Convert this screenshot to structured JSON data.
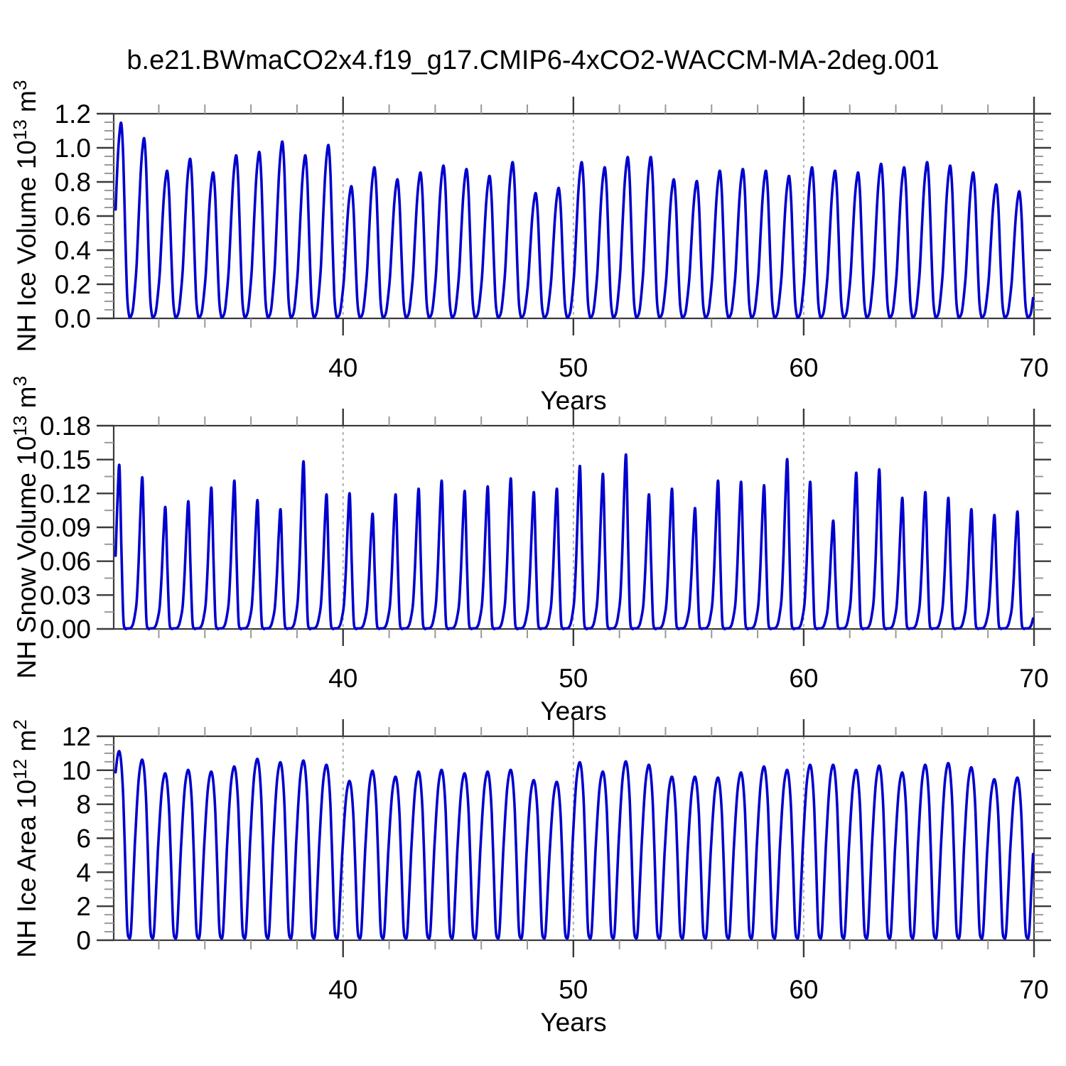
{
  "title": "b.e21.BWmaCO2x4.f19_g17.CMIP6-4xCO2-WACCM-MA-2deg.001",
  "line_color": "#0000CE",
  "grid_color": "#b0b0b0",
  "frame_color": "#3a3a3a",
  "minor_tick_color": "#999999",
  "x_axis": {
    "label": "Years",
    "tick_labels": [
      "40",
      "50",
      "60",
      "70"
    ],
    "tick_years": [
      40,
      50,
      60,
      70
    ],
    "minor_step": 2,
    "min": 30.0417,
    "max": 70.0,
    "gridline_years": [
      40,
      50,
      60
    ]
  },
  "chart_data": [
    {
      "type": "line",
      "series_name": "NH Ice Volume",
      "ylabel": "NH Ice Volume 10^13 m^3",
      "ylabel_parts": {
        "text1": "NH Ice Volume 10",
        "sup1": "13",
        "text2": " m",
        "sup2": "3"
      },
      "xlabel": "Years",
      "ylim": [
        0,
        1.2
      ],
      "ytick_labels": [
        "0.0",
        "0.2",
        "0.4",
        "0.6",
        "0.8",
        "1.0",
        "1.2"
      ],
      "ytick_values": [
        0,
        0.2,
        0.4,
        0.6,
        0.8,
        1.0,
        1.2
      ],
      "yminor_step": 0.05,
      "start_year": 30,
      "peak_years": [
        30,
        31,
        32,
        33,
        34,
        35,
        36,
        37,
        38,
        39,
        40,
        41,
        42,
        43,
        44,
        45,
        46,
        47,
        48,
        49,
        50,
        51,
        52,
        53,
        54,
        55,
        56,
        57,
        58,
        59,
        60,
        61,
        62,
        63,
        64,
        65,
        66,
        67,
        68,
        69
      ],
      "annual_peaks": [
        1.14,
        1.05,
        0.86,
        0.93,
        0.85,
        0.95,
        0.97,
        1.03,
        0.95,
        1.01,
        0.77,
        0.88,
        0.81,
        0.85,
        0.89,
        0.87,
        0.83,
        0.91,
        0.73,
        0.76,
        0.91,
        0.88,
        0.94,
        0.94,
        0.81,
        0.8,
        0.86,
        0.87,
        0.86,
        0.83,
        0.88,
        0.86,
        0.85,
        0.9,
        0.88,
        0.91,
        0.89,
        0.85,
        0.78,
        0.74
      ],
      "annual_min": 0.01,
      "monthly_profile": [
        0.31,
        0.56,
        0.8,
        0.95,
        1.0,
        0.82,
        0.44,
        0.12,
        0.015,
        0.012,
        0.05,
        0.16
      ]
    },
    {
      "type": "line",
      "series_name": "NH Snow Volume",
      "ylabel": "NH Snow Volume 10^13 m^3",
      "ylabel_parts": {
        "text1": "NH Snow Volume 10",
        "sup1": "13",
        "text2": " m",
        "sup2": "3"
      },
      "xlabel": "Years",
      "ylim": [
        0,
        0.18
      ],
      "ytick_labels": [
        "0.00",
        "0.03",
        "0.06",
        "0.09",
        "0.12",
        "0.15",
        "0.18"
      ],
      "ytick_values": [
        0,
        0.03,
        0.06,
        0.09,
        0.12,
        0.15,
        0.18
      ],
      "yminor_step": 0.015,
      "start_year": 30,
      "peak_years": [
        30,
        31,
        32,
        33,
        34,
        35,
        36,
        37,
        38,
        39,
        40,
        41,
        42,
        43,
        44,
        45,
        46,
        47,
        48,
        49,
        50,
        51,
        52,
        53,
        54,
        55,
        56,
        57,
        58,
        59,
        60,
        61,
        62,
        63,
        64,
        65,
        66,
        67,
        68,
        69
      ],
      "annual_peaks": [
        0.144,
        0.133,
        0.107,
        0.112,
        0.124,
        0.13,
        0.113,
        0.105,
        0.147,
        0.118,
        0.119,
        0.101,
        0.118,
        0.123,
        0.13,
        0.121,
        0.125,
        0.132,
        0.12,
        0.123,
        0.143,
        0.136,
        0.153,
        0.118,
        0.123,
        0.106,
        0.13,
        0.129,
        0.126,
        0.149,
        0.129,
        0.095,
        0.137,
        0.14,
        0.115,
        0.12,
        0.115,
        0.105,
        0.1,
        0.103
      ],
      "annual_min": 0.0005,
      "monthly_profile": [
        0.19,
        0.45,
        0.8,
        1.0,
        0.5,
        0.07,
        0.004,
        0.003,
        0.003,
        0.008,
        0.03,
        0.09
      ]
    },
    {
      "type": "line",
      "series_name": "NH Ice Area",
      "ylabel": "NH Ice Area 10^12 m^2",
      "ylabel_parts": {
        "text1": "NH Ice Area 10",
        "sup1": "12",
        "text2": " m",
        "sup2": "2"
      },
      "xlabel": "Years",
      "ylim": [
        0,
        12
      ],
      "ytick_labels": [
        "0",
        "2",
        "4",
        "6",
        "8",
        "10",
        "12"
      ],
      "ytick_values": [
        0,
        2,
        4,
        6,
        8,
        10,
        12
      ],
      "yminor_step": 0.5,
      "start_year": 30,
      "peak_years": [
        30,
        31,
        32,
        33,
        34,
        35,
        36,
        37,
        38,
        39,
        40,
        41,
        42,
        43,
        44,
        45,
        46,
        47,
        48,
        49,
        50,
        51,
        52,
        53,
        54,
        55,
        56,
        57,
        58,
        59,
        60,
        61,
        62,
        63,
        64,
        65,
        66,
        67,
        68,
        69
      ],
      "annual_peaks": [
        11.1,
        10.6,
        9.8,
        10.0,
        9.9,
        10.2,
        10.65,
        10.45,
        10.55,
        10.3,
        9.35,
        9.95,
        9.6,
        9.9,
        10.0,
        9.8,
        9.9,
        10.0,
        9.4,
        9.3,
        10.45,
        9.9,
        10.5,
        10.3,
        9.6,
        9.6,
        9.55,
        9.85,
        10.2,
        10.0,
        10.3,
        10.3,
        10.0,
        10.25,
        9.85,
        10.3,
        10.4,
        10.15,
        9.45,
        9.55
      ],
      "annual_min": 0.12,
      "monthly_profile": [
        0.73,
        0.89,
        0.975,
        1.0,
        0.93,
        0.75,
        0.42,
        0.08,
        0.012,
        0.05,
        0.28,
        0.53
      ]
    }
  ]
}
